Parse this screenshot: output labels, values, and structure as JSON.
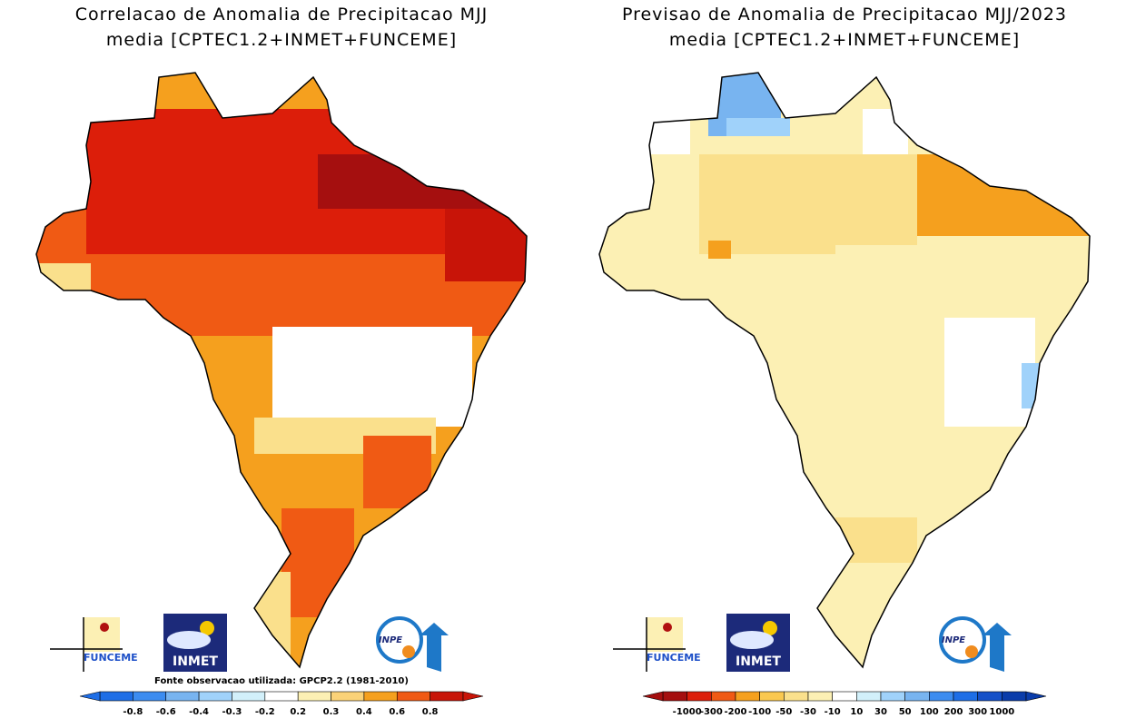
{
  "panels": [
    {
      "title": "Correlacao de Anomalia de Precipitacao MJJ",
      "subtitle": "media [CPTEC1.2+INMET+FUNCEME]",
      "logos": {
        "funceme": "FUNCEME",
        "inmet": "INMET",
        "inpe": "INPE"
      },
      "source": "Fonte observacao utilizada: GPCP2.2 (1981-2010)",
      "colorbar": {
        "labels": [
          "-0.8",
          "-0.6",
          "-0.4",
          "-0.3",
          "-0.2",
          "0.2",
          "0.3",
          "0.4",
          "0.6",
          "0.8"
        ],
        "colors": [
          "#1e6ee6",
          "#3c8cf0",
          "#78b4f0",
          "#a0d2fa",
          "#d2f0fa",
          "#ffffff",
          "#fcf0b4",
          "#fad278",
          "#f5a01e",
          "#f05a14",
          "#c81408"
        ]
      }
    },
    {
      "title": "Previsao de Anomalia de Precipitacao MJJ/2023",
      "subtitle": "media [CPTEC1.2+INMET+FUNCEME]",
      "logos": {
        "funceme": "FUNCEME",
        "inmet": "INMET",
        "inpe": "INPE"
      },
      "colorbar": {
        "labels": [
          "-1000",
          "-300",
          "-200",
          "-100",
          "-50",
          "-30",
          "-10",
          "10",
          "30",
          "50",
          "100",
          "200",
          "300",
          "1000"
        ],
        "colors": [
          "#a50f0f",
          "#dc1e0a",
          "#f05a14",
          "#f5a01e",
          "#fac850",
          "#fae08c",
          "#fcf0b4",
          "#ffffff",
          "#d2f0fa",
          "#a0d2fa",
          "#78b4f0",
          "#3c8cf0",
          "#1e6ee6",
          "#1450c8",
          "#0a3caa"
        ]
      }
    }
  ]
}
